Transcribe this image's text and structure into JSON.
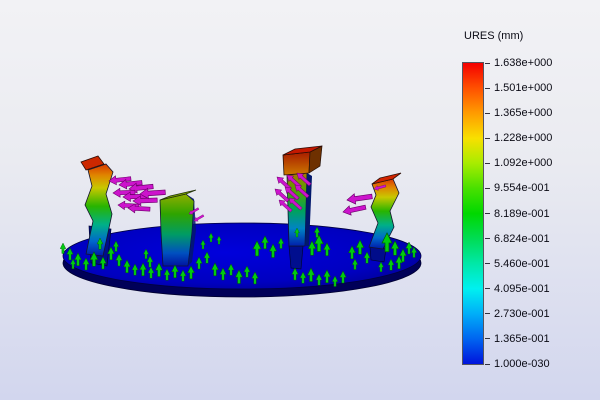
{
  "viewport": {
    "kind": "fea-displacement-result-3d-view"
  },
  "legend": {
    "title": "URES (mm)",
    "values": [
      "1.638e+000",
      "1.501e+000",
      "1.365e+000",
      "1.228e+000",
      "1.092e+000",
      "9.554e-001",
      "8.189e-001",
      "6.824e-001",
      "5.460e-001",
      "4.095e-001",
      "2.730e-001",
      "1.365e-001",
      "1.000e-030"
    ],
    "gradient_colors_top_to_bottom": [
      "#f40000",
      "#ff5000",
      "#ff9c00",
      "#f8e000",
      "#a8ec00",
      "#48e000",
      "#00d800",
      "#00dc54",
      "#00e8a8",
      "#00f0f0",
      "#00aef8",
      "#0064f0",
      "#0014dc"
    ]
  },
  "scene_colors": {
    "base_plate": "#0000c4",
    "plate_rim": "#000058",
    "fixture_arrows": "#00cc10",
    "load_arrows": "#cc14cc",
    "background_top": "#f2f2f5",
    "background_bottom": "#d2d6ee"
  },
  "counts": {
    "posts": 4
  }
}
